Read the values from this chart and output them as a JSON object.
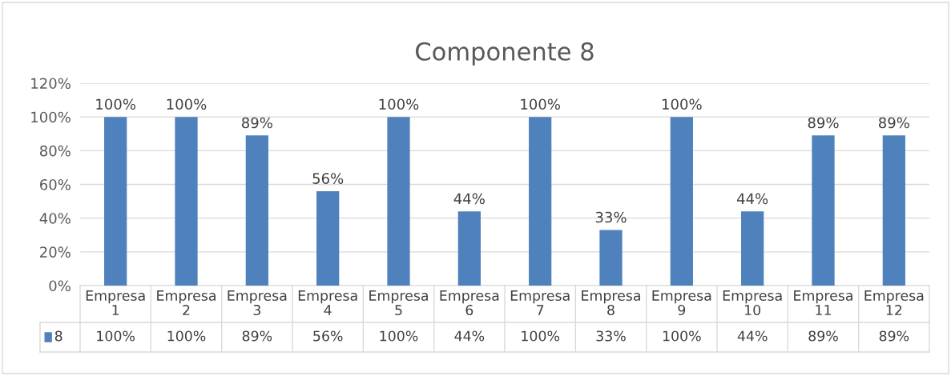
{
  "chart_data": {
    "type": "bar",
    "title": "Componente 8",
    "categories": [
      "Empresa 1",
      "Empresa 2",
      "Empresa 3",
      "Empresa 4",
      "Empresa 5",
      "Empresa 6",
      "Empresa 7",
      "Empresa 8",
      "Empresa 9",
      "Empresa 10",
      "Empresa 11",
      "Empresa 12"
    ],
    "series": [
      {
        "name": "8",
        "color": "#4f81bd",
        "values": [
          100,
          100,
          89,
          56,
          100,
          44,
          100,
          33,
          100,
          44,
          89,
          89
        ],
        "value_labels": [
          "100%",
          "100%",
          "89%",
          "56%",
          "100%",
          "44%",
          "100%",
          "33%",
          "100%",
          "44%",
          "89%",
          "89%"
        ]
      }
    ],
    "ylim": [
      0,
      120
    ],
    "yticks": [
      {
        "value": 0,
        "label": "0%"
      },
      {
        "value": 20,
        "label": "20%"
      },
      {
        "value": 40,
        "label": "40%"
      },
      {
        "value": 60,
        "label": "60%"
      },
      {
        "value": 80,
        "label": "80%"
      },
      {
        "value": 100,
        "label": "100%"
      },
      {
        "value": 120,
        "label": "120%"
      }
    ],
    "grid": "y",
    "legend": "bottom"
  }
}
